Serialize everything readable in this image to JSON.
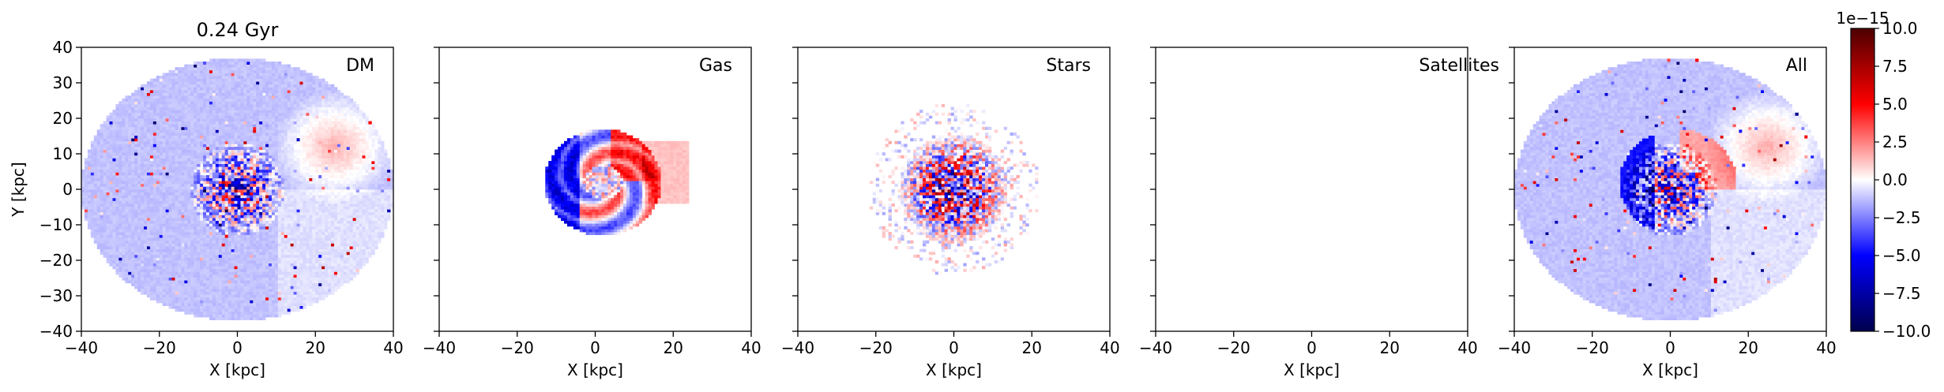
{
  "chart_data": {
    "type": "heatmap",
    "title": "0.24 Gyr",
    "xlabel": "X [kpc]",
    "ylabel": "Y [kpc]",
    "xlim": [
      -40,
      40
    ],
    "ylim": [
      -40,
      40
    ],
    "xticks": [
      -40,
      -20,
      0,
      20,
      40
    ],
    "yticks": [
      -40,
      -30,
      -20,
      -10,
      0,
      10,
      20,
      30,
      40
    ],
    "panels": [
      {
        "label": "DM"
      },
      {
        "label": "Gas"
      },
      {
        "label": "Stars"
      },
      {
        "label": "Satellites"
      },
      {
        "label": "All"
      }
    ],
    "colorbar": {
      "colormap": "seismic",
      "range": [
        -10.0,
        10.0
      ],
      "scale_label": "1e−15",
      "ticks": [
        -10.0,
        -7.5,
        -5.0,
        -2.5,
        0.0,
        2.5,
        5.0,
        7.5,
        10.0
      ],
      "tick_labels": [
        "−10.0",
        "−7.5",
        "−5.0",
        "−2.5",
        "0.0",
        "2.5",
        "5.0",
        "7.5",
        "10.0"
      ]
    },
    "colors": {
      "low": "#00004c",
      "mid": "#ffffff",
      "high": "#7f0000"
    }
  }
}
